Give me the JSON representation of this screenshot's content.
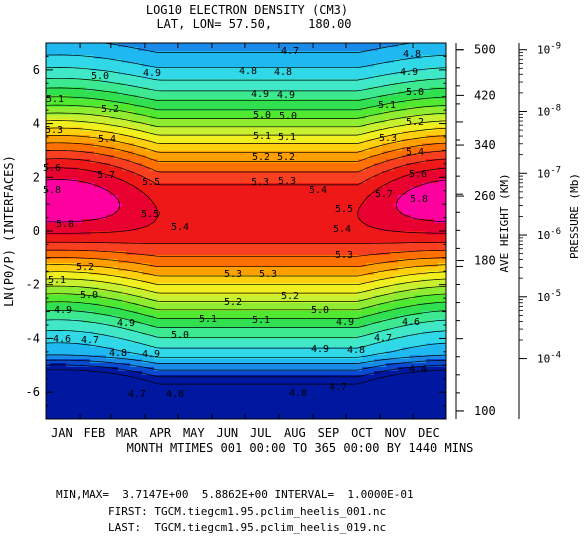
{
  "chart_data": {
    "type": "heatmap",
    "title": "LOG10 ELECTRON DENSITY (CM3)",
    "subtitle": "LAT, LON= 57.50,     180.00",
    "xlabel": "MONTH MTIMES 001 00:00 TO 365 00:00 BY 1440 MINS",
    "ylabel": "LN(P0/P) (INTERFACES)",
    "right_axis_1_label": "AVE HEIGHT (KM)",
    "right_axis_2_label": "PRESSURE (Mb)",
    "x_months": [
      "JAN",
      "FEB",
      "MAR",
      "APR",
      "MAY",
      "JUN",
      "JUL",
      "AUG",
      "SEP",
      "OCT",
      "NOV",
      "DEC"
    ],
    "xlim": [
      1,
      365
    ],
    "ylim": [
      -7,
      7
    ],
    "y_ticks": [
      "-6",
      "-4",
      "-2",
      "0",
      "2",
      "4",
      "6"
    ],
    "height_ticks": [
      {
        "label": "500",
        "lnp": 6.75
      },
      {
        "label": "420",
        "lnp": 5.05
      },
      {
        "label": "340",
        "lnp": 3.2
      },
      {
        "label": "260",
        "lnp": 1.3
      },
      {
        "label": "180",
        "lnp": -1.1
      },
      {
        "label": "100",
        "lnp": -6.7
      }
    ],
    "pressure_ticks": [
      {
        "mantissa": "10",
        "exp": "-9",
        "lnp": 6.75
      },
      {
        "mantissa": "10",
        "exp": "-8",
        "lnp": 4.45
      },
      {
        "mantissa": "10",
        "exp": "-7",
        "lnp": 2.15
      },
      {
        "mantissa": "10",
        "exp": "-6",
        "lnp": -0.15
      },
      {
        "mantissa": "10",
        "exp": "-5",
        "lnp": -2.45
      },
      {
        "mantissa": "10",
        "exp": "-4",
        "lnp": -4.75
      }
    ],
    "min": 3.7147,
    "max": 5.8862,
    "interval": 0.1,
    "contour_labels": [
      {
        "v": "4.7",
        "x": 290,
        "y": 54
      },
      {
        "v": "4.8",
        "x": 412,
        "y": 57
      },
      {
        "v": "5.0",
        "x": 100,
        "y": 79
      },
      {
        "v": "4.9",
        "x": 152,
        "y": 76
      },
      {
        "v": "4.8",
        "x": 248,
        "y": 74
      },
      {
        "v": "4.8",
        "x": 283,
        "y": 75
      },
      {
        "v": "4.9",
        "x": 409,
        "y": 75
      },
      {
        "v": "4.9",
        "x": 260,
        "y": 97
      },
      {
        "v": "4.9",
        "x": 286,
        "y": 98
      },
      {
        "v": "5.0",
        "x": 415,
        "y": 95
      },
      {
        "v": "5.1",
        "x": 55,
        "y": 102
      },
      {
        "v": "5.0",
        "x": 262,
        "y": 118
      },
      {
        "v": "5.0",
        "x": 288,
        "y": 119
      },
      {
        "v": "5.1",
        "x": 387,
        "y": 108
      },
      {
        "v": "5.2",
        "x": 110,
        "y": 112
      },
      {
        "v": "5.2",
        "x": 415,
        "y": 125
      },
      {
        "v": "5.3",
        "x": 54,
        "y": 133
      },
      {
        "v": "5.1",
        "x": 262,
        "y": 139
      },
      {
        "v": "5.1",
        "x": 287,
        "y": 140
      },
      {
        "v": "5.3",
        "x": 388,
        "y": 141
      },
      {
        "v": "5.4",
        "x": 107,
        "y": 142
      },
      {
        "v": "5.4",
        "x": 415,
        "y": 155
      },
      {
        "v": "5.2",
        "x": 261,
        "y": 160
      },
      {
        "v": "5.2",
        "x": 286,
        "y": 160
      },
      {
        "v": "5.6",
        "x": 52,
        "y": 171
      },
      {
        "v": "5.7",
        "x": 106,
        "y": 178
      },
      {
        "v": "5.3",
        "x": 260,
        "y": 185
      },
      {
        "v": "5.3",
        "x": 287,
        "y": 184
      },
      {
        "v": "5.6",
        "x": 418,
        "y": 177
      },
      {
        "v": "5.8",
        "x": 52,
        "y": 193
      },
      {
        "v": "5.5",
        "x": 151,
        "y": 185
      },
      {
        "v": "5.4",
        "x": 318,
        "y": 193
      },
      {
        "v": "5.7",
        "x": 384,
        "y": 197
      },
      {
        "v": "5.8",
        "x": 419,
        "y": 202
      },
      {
        "v": "5.5",
        "x": 150,
        "y": 217
      },
      {
        "v": "5.5",
        "x": 344,
        "y": 212
      },
      {
        "v": "5.8",
        "x": 65,
        "y": 227
      },
      {
        "v": "5.4",
        "x": 180,
        "y": 230
      },
      {
        "v": "5.4",
        "x": 342,
        "y": 232
      },
      {
        "v": "5.3",
        "x": 344,
        "y": 258
      },
      {
        "v": "5.2",
        "x": 85,
        "y": 270
      },
      {
        "v": "5.3",
        "x": 233,
        "y": 277
      },
      {
        "v": "5.3",
        "x": 268,
        "y": 277
      },
      {
        "v": "5.1",
        "x": 57,
        "y": 283
      },
      {
        "v": "5.2",
        "x": 233,
        "y": 305
      },
      {
        "v": "5.2",
        "x": 290,
        "y": 299
      },
      {
        "v": "5.0",
        "x": 89,
        "y": 298
      },
      {
        "v": "4.9",
        "x": 63,
        "y": 313
      },
      {
        "v": "5.1",
        "x": 208,
        "y": 322
      },
      {
        "v": "5.1",
        "x": 261,
        "y": 323
      },
      {
        "v": "5.0",
        "x": 320,
        "y": 313
      },
      {
        "v": "4.9",
        "x": 126,
        "y": 326
      },
      {
        "v": "5.0",
        "x": 180,
        "y": 338
      },
      {
        "v": "4.9",
        "x": 345,
        "y": 325
      },
      {
        "v": "4.6",
        "x": 62,
        "y": 342
      },
      {
        "v": "4.7",
        "x": 90,
        "y": 343
      },
      {
        "v": "4.8",
        "x": 118,
        "y": 356
      },
      {
        "v": "4.9",
        "x": 151,
        "y": 357
      },
      {
        "v": "4.9",
        "x": 320,
        "y": 352
      },
      {
        "v": "4.8",
        "x": 356,
        "y": 353
      },
      {
        "v": "4.7",
        "x": 383,
        "y": 341
      },
      {
        "v": "4.6",
        "x": 411,
        "y": 325
      },
      {
        "v": "4.4",
        "x": 418,
        "y": 372
      },
      {
        "v": "4.7",
        "x": 137,
        "y": 397
      },
      {
        "v": "4.8",
        "x": 175,
        "y": 397
      },
      {
        "v": "4.8",
        "x": 298,
        "y": 396
      },
      {
        "v": "4.7",
        "x": 338,
        "y": 390
      }
    ]
  },
  "footer": {
    "minmax": "MIN,MAX=  3.7147E+00  5.8862E+00 INTERVAL=  1.0000E-01",
    "first": "FIRST: TGCM.tiegcm1.95.pclim_heelis_001.nc",
    "last": "LAST:  TGCM.tiegcm1.95.pclim_heelis_019.nc"
  },
  "colors": {
    "palette_low_to_high": [
      "#0018a0",
      "#0a4ad0",
      "#1a8ae8",
      "#20b8f0",
      "#30d8e8",
      "#40e8c8",
      "#3ce890",
      "#30e050",
      "#50e830",
      "#90ec30",
      "#c8f030",
      "#f0f020",
      "#ffd010",
      "#ffa000",
      "#ff7000",
      "#f84020",
      "#ee1818",
      "#e80030",
      "#ff00a0",
      "#ff30ff"
    ]
  },
  "plot_frame": "plot area bounds"
}
